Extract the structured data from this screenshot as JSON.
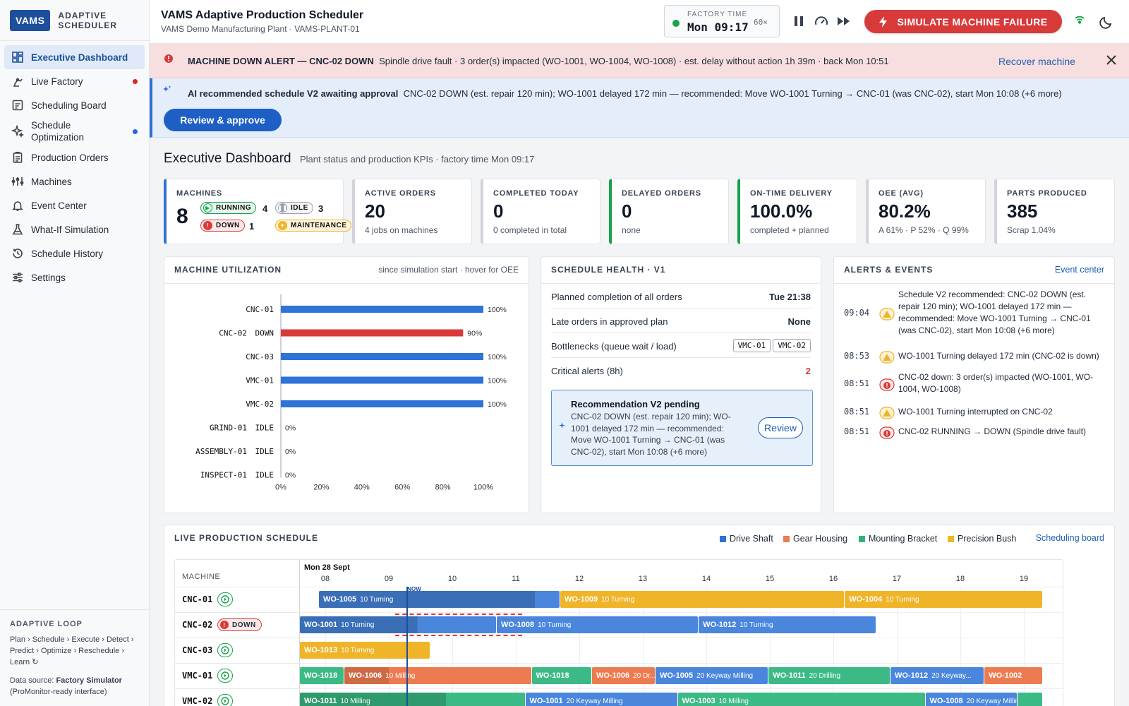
{
  "sidebar": {
    "logo": "VAMS",
    "logo_line1": "ADAPTIVE",
    "logo_line2": "SCHEDULER",
    "items": [
      {
        "label": "Executive Dashboard"
      },
      {
        "label": "Live Factory"
      },
      {
        "label": "Scheduling Board"
      },
      {
        "label": "Schedule Optimization"
      },
      {
        "label": "Production Orders"
      },
      {
        "label": "Machines"
      },
      {
        "label": "Event Center"
      },
      {
        "label": "What-If Simulation"
      },
      {
        "label": "Schedule History"
      },
      {
        "label": "Settings"
      }
    ],
    "footer_title": "ADAPTIVE LOOP",
    "footer_loop": "Plan › Schedule › Execute › Detect › Predict › Optimize › Reschedule › Learn ↻",
    "footer_source_label": "Data source:",
    "footer_source_value": "Factory Simulator",
    "footer_source_note": "(ProMonitor-ready interface)"
  },
  "header": {
    "title": "VAMS Adaptive Production Scheduler",
    "subtitle": "VAMS Demo Manufacturing Plant · VAMS-PLANT-01",
    "factory_time_label": "FACTORY TIME",
    "factory_time": "Mon 09:17",
    "speed": "60×",
    "simulate_label": "SIMULATE MACHINE FAILURE"
  },
  "alert": {
    "title": "MACHINE DOWN ALERT — CNC-02 DOWN",
    "text": "Spindle drive fault  · 3 order(s) impacted (WO-1001, WO-1004, WO-1008) · est. delay without action 1h 39m · back Mon 10:51",
    "action": "Recover machine"
  },
  "ai": {
    "title": "AI recommended schedule V2 awaiting approval",
    "text": "CNC-02 DOWN (est. repair 120 min); WO-1001 delayed 172 min — recommended: Move WO-1001 Turning → CNC-01 (was CNC-02), start Mon 10:08 (+6 more)",
    "button": "Review & approve"
  },
  "dashboard": {
    "title": "Executive Dashboard",
    "subtitle": "Plant status and production KPIs · factory time Mon 09:17"
  },
  "kpis": {
    "machines": {
      "label": "MACHINES",
      "value": "8",
      "running_label": "RUNNING",
      "running": "4",
      "idle_label": "IDLE",
      "idle": "3",
      "down_label": "DOWN",
      "down": "1",
      "maintenance_label": "MAINTENANCE"
    },
    "cards": [
      {
        "label": "ACTIVE ORDERS",
        "value": "20",
        "sub": "4 jobs on machines"
      },
      {
        "label": "COMPLETED TODAY",
        "value": "0",
        "sub": "0 completed in total"
      },
      {
        "label": "DELAYED ORDERS",
        "value": "0",
        "sub": "none"
      },
      {
        "label": "ON-TIME DELIVERY",
        "value": "100.0%",
        "sub": "completed + planned"
      },
      {
        "label": "OEE (AVG)",
        "value": "80.2%",
        "sub": "A 61% · P 52% · Q 99%"
      },
      {
        "label": "PARTS PRODUCED",
        "value": "385",
        "sub": "Scrap 1.04%"
      }
    ]
  },
  "utilization": {
    "title": "MACHINE UTILIZATION",
    "note": "since simulation start · hover for OEE",
    "chart_data": {
      "type": "bar",
      "orientation": "horizontal",
      "categories": [
        "CNC-01",
        "CNC-02",
        "CNC-03",
        "VMC-01",
        "VMC-02",
        "GRIND-01",
        "ASSEMBLY-01",
        "INSPECT-01"
      ],
      "status": [
        "",
        "DOWN",
        "",
        "",
        "",
        "IDLE",
        "IDLE",
        "IDLE"
      ],
      "values": [
        100,
        90,
        100,
        100,
        100,
        0,
        0,
        0
      ],
      "value_labels": [
        "100%",
        "90%",
        "100%",
        "100%",
        "100%",
        "0%",
        "0%",
        "0%"
      ],
      "xticks": [
        "0%",
        "20%",
        "40%",
        "60%",
        "80%",
        "100%"
      ],
      "xlim": [
        0,
        100
      ],
      "colors": {
        "normal": "#2f72d8",
        "down": "#d83a3a"
      }
    }
  },
  "health": {
    "title": "SCHEDULE HEALTH · V1",
    "rows": [
      {
        "label": "Planned completion of all orders",
        "value": "Tue 21:38"
      },
      {
        "label": "Late orders in approved plan",
        "value": "None"
      },
      {
        "label": "Bottlenecks (queue wait / load)",
        "chips": [
          "VMC-01",
          "VMC-02"
        ]
      },
      {
        "label": "Critical alerts (8h)",
        "value": "2"
      }
    ],
    "rec_title": "Recommendation V2 pending",
    "rec_text": "CNC-02 DOWN (est. repair 120 min); WO-1001 delayed 172 min — recommended: Move WO-1001 Turning → CNC-01 (was CNC-02), start Mon 10:08 (+6 more)",
    "rec_button": "Review"
  },
  "alerts_panel": {
    "title": "ALERTS & EVENTS",
    "link": "Event center",
    "events": [
      {
        "time": "09:04",
        "level": "warning",
        "text": "Schedule V2 recommended: CNC-02 DOWN (est. repair 120 min); WO-1001 delayed 172 min — recommended: Move WO-1001 Turning → CNC-01 (was CNC-02), start Mon 10:08 (+6 more)"
      },
      {
        "time": "08:53",
        "level": "warning",
        "text": "WO-1001 Turning delayed 172 min (CNC-02 is down)"
      },
      {
        "time": "08:51",
        "level": "critical",
        "text": "CNC-02 down: 3 order(s) impacted (WO-1001, WO-1004, WO-1008)"
      },
      {
        "time": "08:51",
        "level": "warning",
        "text": "WO-1001 Turning interrupted on CNC-02"
      },
      {
        "time": "08:51",
        "level": "critical",
        "text": "CNC-02 RUNNING → DOWN (Spindle drive fault)"
      }
    ]
  },
  "schedule": {
    "title": "LIVE PRODUCTION SCHEDULE",
    "legend": [
      {
        "label": "Drive Shaft",
        "color": "#2f72d8"
      },
      {
        "label": "Gear Housing",
        "color": "#ee7b4f"
      },
      {
        "label": "Mounting Bracket",
        "color": "#2fb27a"
      },
      {
        "label": "Precision Bush",
        "color": "#f0b429"
      }
    ],
    "link": "Scheduling board",
    "machine_header": "MACHINE",
    "date_label": "Mon 28 Sept",
    "hours": [
      "08",
      "09",
      "10",
      "11",
      "12",
      "13",
      "14",
      "15",
      "16",
      "17",
      "18",
      "19"
    ],
    "now_label": "NOW",
    "now_hour": 9.28,
    "start_hour": 7.6,
    "machines": [
      {
        "name": "CNC-01",
        "status": "running"
      },
      {
        "name": "CNC-02",
        "status": "down",
        "status_label": "DOWN"
      },
      {
        "name": "CNC-03",
        "status": "running"
      },
      {
        "name": "VMC-01",
        "status": "running"
      },
      {
        "name": "VMC-02",
        "status": "running"
      }
    ],
    "bars": [
      {
        "row": 0,
        "start": 7.9,
        "end": 11.7,
        "progress": 3.4,
        "wo": "WO-1005",
        "op": "10 Turning",
        "product": "drive"
      },
      {
        "row": 0,
        "start": 11.7,
        "end": 16.18,
        "wo": "WO-1009",
        "op": "10 Turning",
        "product": "bush"
      },
      {
        "row": 0,
        "start": 16.18,
        "end": 19.3,
        "wo": "WO-1004",
        "op": "10 Turning",
        "product": "bush"
      },
      {
        "row": 1,
        "start": 7.6,
        "end": 10.7,
        "progress": 1.85,
        "wo": "WO-1001",
        "op": "10 Turning",
        "product": "drive"
      },
      {
        "row": 1,
        "start": 10.7,
        "end": 13.88,
        "wo": "WO-1008",
        "op": "10 Turning",
        "product": "drive"
      },
      {
        "row": 1,
        "start": 13.88,
        "end": 16.68,
        "wo": "WO-1012",
        "op": "10 Turning",
        "product": "drive"
      },
      {
        "row": 2,
        "start": 7.6,
        "end": 9.65,
        "wo": "WO-1013",
        "op": "10 Turning",
        "product": "bush"
      },
      {
        "row": 3,
        "start": 7.6,
        "end": 8.3,
        "wo": "WO-1018",
        "op": "",
        "product": "bracket"
      },
      {
        "row": 3,
        "start": 8.3,
        "end": 11.25,
        "progress": 0.7,
        "wo": "WO-1006",
        "op": "10 Milling",
        "product": "housing"
      },
      {
        "row": 3,
        "start": 11.25,
        "end": 12.2,
        "wo": "WO-1018",
        "op": "",
        "product": "bracket"
      },
      {
        "row": 3,
        "start": 12.2,
        "end": 13.2,
        "wo": "WO-1006",
        "op": "20 Dr...",
        "product": "housing"
      },
      {
        "row": 3,
        "start": 13.2,
        "end": 14.98,
        "wo": "WO-1005",
        "op": "20 Keyway Milling",
        "product": "drive"
      },
      {
        "row": 3,
        "start": 14.98,
        "end": 16.9,
        "wo": "WO-1011",
        "op": "20 Drilling",
        "product": "bracket"
      },
      {
        "row": 3,
        "start": 16.9,
        "end": 18.38,
        "wo": "WO-1012",
        "op": "20 Keyway...",
        "product": "drive"
      },
      {
        "row": 3,
        "start": 18.38,
        "end": 19.3,
        "wo": "WO-1002",
        "op": "",
        "product": "housing"
      },
      {
        "row": 4,
        "start": 7.6,
        "end": 11.15,
        "progress": 2.3,
        "wo": "WO-1011",
        "op": "10 Milling",
        "product": "bracket"
      },
      {
        "row": 4,
        "start": 11.15,
        "end": 13.55,
        "wo": "WO-1001",
        "op": "20 Keyway Milling",
        "product": "drive"
      },
      {
        "row": 4,
        "start": 13.55,
        "end": 17.45,
        "wo": "WO-1003",
        "op": "10 Milling",
        "product": "bracket"
      },
      {
        "row": 4,
        "start": 17.45,
        "end": 18.9,
        "wo": "WO-1008",
        "op": "20 Keyway Milling",
        "product": "drive"
      },
      {
        "row": 4,
        "start": 18.9,
        "end": 19.3,
        "wo": "",
        "op": "",
        "product": "bracket"
      }
    ]
  }
}
